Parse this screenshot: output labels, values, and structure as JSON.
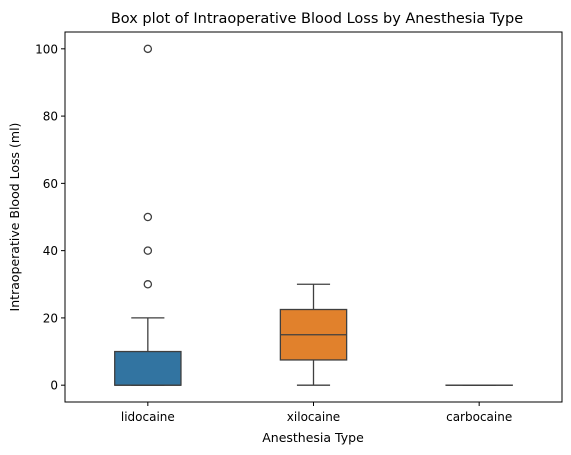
{
  "chart_data": {
    "type": "box",
    "title": "Box plot of Intraoperative Blood Loss by Anesthesia Type",
    "xlabel": "Anesthesia Type",
    "ylabel": "Intraoperative Blood Loss (ml)",
    "ylim": [
      -5,
      105
    ],
    "yticks": [
      0,
      20,
      40,
      60,
      80,
      100
    ],
    "grid": false,
    "categories": [
      "lidocaine",
      "xilocaine",
      "carbocaine"
    ],
    "boxes": [
      {
        "category": "lidocaine",
        "color": "#3274a1",
        "whisker_low": 0,
        "q1": 0,
        "median": 0,
        "q3": 10,
        "whisker_high": 20,
        "outliers": [
          30,
          40,
          50,
          100
        ]
      },
      {
        "category": "xilocaine",
        "color": "#e1812c",
        "whisker_low": 0,
        "q1": 7.5,
        "median": 15,
        "q3": 22.5,
        "whisker_high": 30,
        "outliers": []
      },
      {
        "category": "carbocaine",
        "color": "#3a923a",
        "whisker_low": 0,
        "q1": 0,
        "median": 0,
        "q3": 0,
        "whisker_high": 0,
        "outliers": []
      }
    ]
  }
}
